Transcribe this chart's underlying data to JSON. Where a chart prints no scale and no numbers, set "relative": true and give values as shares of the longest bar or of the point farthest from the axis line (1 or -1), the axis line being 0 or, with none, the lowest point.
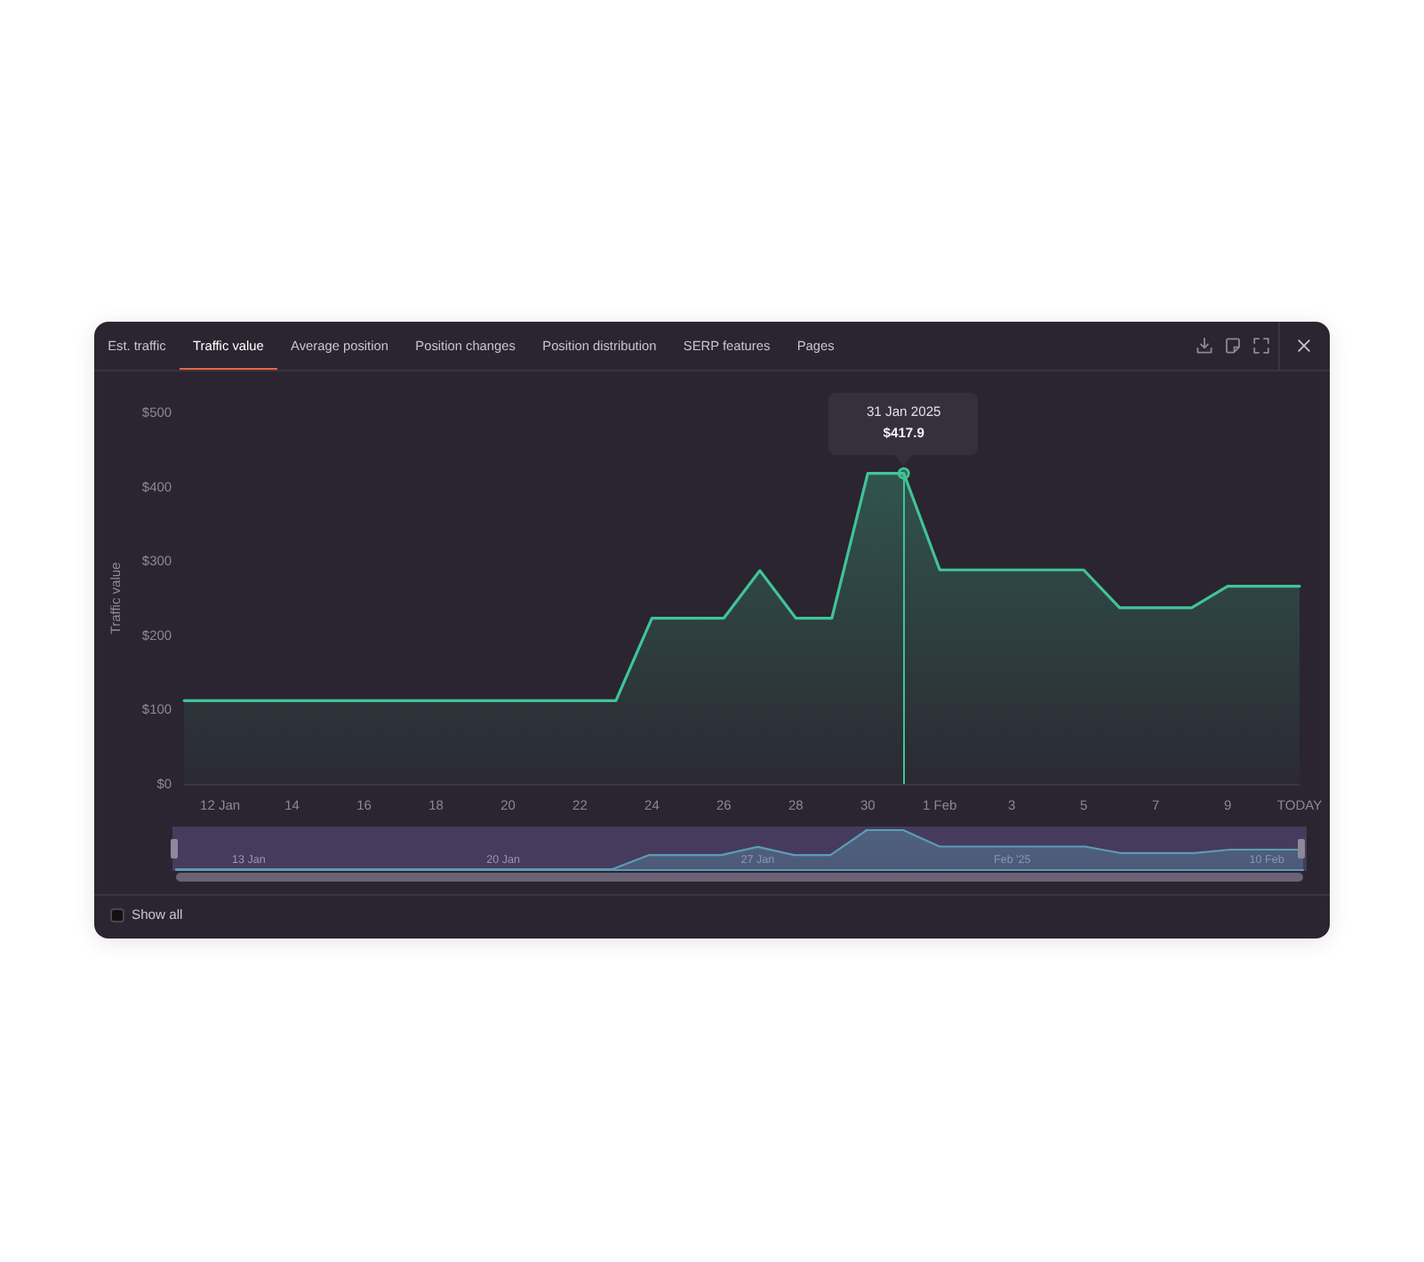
{
  "chart_data": [
    {
      "type": "area",
      "title": "Traffic value",
      "ylabel": "Traffic value",
      "x": [
        "2025-01-11",
        "2025-01-12",
        "2025-01-13",
        "2025-01-14",
        "2025-01-15",
        "2025-01-16",
        "2025-01-17",
        "2025-01-18",
        "2025-01-19",
        "2025-01-20",
        "2025-01-21",
        "2025-01-22",
        "2025-01-23",
        "2025-01-24",
        "2025-01-25",
        "2025-01-26",
        "2025-01-27",
        "2025-01-28",
        "2025-01-29",
        "2025-01-30",
        "2025-01-31",
        "2025-02-01",
        "2025-02-02",
        "2025-02-03",
        "2025-02-04",
        "2025-02-05",
        "2025-02-06",
        "2025-02-07",
        "2025-02-08",
        "2025-02-09",
        "2025-02-10",
        "2025-02-11"
      ],
      "values": [
        112,
        112,
        112,
        112,
        112,
        112,
        112,
        112,
        112,
        112,
        112,
        112,
        112,
        223,
        223,
        223,
        287,
        223,
        223,
        418,
        417.9,
        288,
        288,
        288,
        288,
        288,
        237,
        237,
        237,
        266,
        266,
        266
      ],
      "color": "#40c497",
      "xlim": [
        "2025-01-11",
        "2025-02-11"
      ],
      "xticks": [
        {
          "value": "2025-01-12",
          "label": "12 Jan"
        },
        {
          "value": "2025-01-14",
          "label": "14"
        },
        {
          "value": "2025-01-16",
          "label": "16"
        },
        {
          "value": "2025-01-18",
          "label": "18"
        },
        {
          "value": "2025-01-20",
          "label": "20"
        },
        {
          "value": "2025-01-22",
          "label": "22"
        },
        {
          "value": "2025-01-24",
          "label": "24"
        },
        {
          "value": "2025-01-26",
          "label": "26"
        },
        {
          "value": "2025-01-28",
          "label": "28"
        },
        {
          "value": "2025-01-30",
          "label": "30"
        },
        {
          "value": "2025-02-01",
          "label": "1 Feb"
        },
        {
          "value": "2025-02-03",
          "label": "3"
        },
        {
          "value": "2025-02-05",
          "label": "5"
        },
        {
          "value": "2025-02-07",
          "label": "7"
        },
        {
          "value": "2025-02-09",
          "label": "9"
        },
        {
          "value": "2025-02-11",
          "label": "TODAY"
        }
      ],
      "ylim": [
        0,
        500
      ],
      "yticks": [
        {
          "value": 0,
          "label": "$0"
        },
        {
          "value": 100,
          "label": "$100"
        },
        {
          "value": 200,
          "label": "$200"
        },
        {
          "value": 300,
          "label": "$300"
        },
        {
          "value": 400,
          "label": "$400"
        },
        {
          "value": 500,
          "label": "$500"
        }
      ],
      "ref_lines": [
        {
          "axis": "x",
          "value": "2025-01-31",
          "color": "#40c497"
        }
      ],
      "annotations": [
        "Est. traffic",
        "Average position",
        "Position changes",
        "Position distribution",
        "SERP features",
        "Pages",
        "Show all",
        "31 Jan 2025",
        {
          "text": "$417.9",
          "x": "2025-01-31",
          "y": 417.9
        }
      ]
    },
    {
      "type": "area",
      "relative": true,
      "x": [
        "2025-01-11",
        "2025-01-12",
        "2025-01-13",
        "2025-01-14",
        "2025-01-15",
        "2025-01-16",
        "2025-01-17",
        "2025-01-18",
        "2025-01-19",
        "2025-01-20",
        "2025-01-21",
        "2025-01-22",
        "2025-01-23",
        "2025-01-24",
        "2025-01-25",
        "2025-01-26",
        "2025-01-27",
        "2025-01-28",
        "2025-01-29",
        "2025-01-30",
        "2025-01-31",
        "2025-02-01",
        "2025-02-02",
        "2025-02-03",
        "2025-02-04",
        "2025-02-05",
        "2025-02-06",
        "2025-02-07",
        "2025-02-08",
        "2025-02-09",
        "2025-02-10",
        "2025-02-11"
      ],
      "values": [
        0,
        0,
        0,
        0,
        0,
        0,
        0,
        0,
        0,
        0,
        0,
        0,
        0,
        0.36,
        0.36,
        0.36,
        0.57,
        0.36,
        0.36,
        1,
        1,
        0.58,
        0.58,
        0.58,
        0.58,
        0.58,
        0.41,
        0.41,
        0.41,
        0.5,
        0.5,
        0.5
      ],
      "color": "#5b9db5",
      "xlim": [
        "2025-01-11",
        "2025-02-11"
      ],
      "xticks": [
        {
          "value": "2025-01-13",
          "label": "13 Jan"
        },
        {
          "value": "2025-01-20",
          "label": "20 Jan"
        },
        {
          "value": "2025-01-27",
          "label": "27 Jan"
        },
        {
          "value": "2025-02-03",
          "label": "Feb '25"
        },
        {
          "value": "2025-02-10",
          "label": "10 Feb"
        }
      ],
      "tick_labels": "x"
    }
  ]
}
